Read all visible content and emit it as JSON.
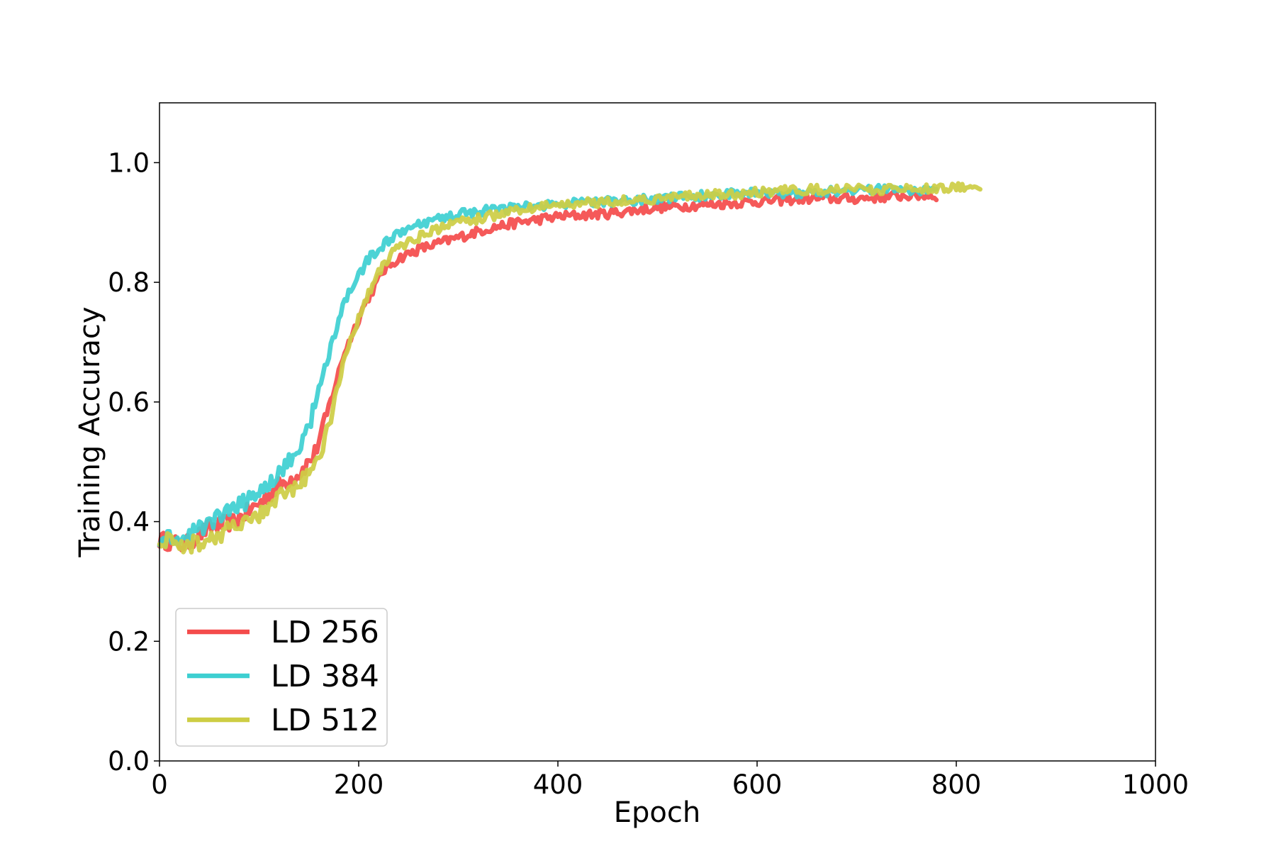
{
  "chart_data": {
    "type": "line",
    "title": "",
    "xlabel": "Epoch",
    "ylabel": "Training Accuracy",
    "xlim": [
      0,
      1000
    ],
    "ylim": [
      0,
      1.1
    ],
    "x_ticks": [
      0,
      200,
      400,
      600,
      800,
      1000
    ],
    "y_ticks": [
      0.0,
      0.2,
      0.4,
      0.6,
      0.8,
      1.0
    ],
    "x_tick_labels": [
      "0",
      "200",
      "400",
      "600",
      "800",
      "1000"
    ],
    "y_tick_labels": [
      "0.0",
      "0.2",
      "0.4",
      "0.6",
      "0.8",
      "1.0"
    ],
    "grid": false,
    "legend_position": "lower-left",
    "series": [
      {
        "name": "LD 256",
        "color": "#f44b4b",
        "x": [
          0,
          25,
          50,
          75,
          100,
          120,
          140,
          155,
          165,
          175,
          185,
          195,
          205,
          215,
          225,
          240,
          260,
          280,
          300,
          330,
          360,
          400,
          450,
          500,
          550,
          600,
          650,
          700,
          750,
          780
        ],
        "y": [
          0.37,
          0.36,
          0.39,
          0.4,
          0.43,
          0.46,
          0.48,
          0.51,
          0.56,
          0.62,
          0.68,
          0.72,
          0.76,
          0.79,
          0.82,
          0.84,
          0.855,
          0.865,
          0.875,
          0.89,
          0.9,
          0.91,
          0.915,
          0.925,
          0.93,
          0.935,
          0.94,
          0.94,
          0.945,
          0.945
        ]
      },
      {
        "name": "LD 384",
        "color": "#3dcfd1",
        "x": [
          0,
          25,
          50,
          75,
          100,
          120,
          140,
          150,
          160,
          170,
          180,
          190,
          200,
          210,
          220,
          230,
          245,
          260,
          280,
          300,
          330,
          360,
          400,
          450,
          500,
          550,
          600,
          650,
          700,
          750,
          780
        ],
        "y": [
          0.37,
          0.37,
          0.4,
          0.42,
          0.45,
          0.48,
          0.52,
          0.56,
          0.62,
          0.68,
          0.74,
          0.78,
          0.81,
          0.84,
          0.855,
          0.87,
          0.885,
          0.895,
          0.905,
          0.915,
          0.92,
          0.925,
          0.93,
          0.935,
          0.94,
          0.945,
          0.95,
          0.95,
          0.955,
          0.955,
          0.955
        ]
      },
      {
        "name": "LD 512",
        "color": "#cdcd44",
        "x": [
          0,
          25,
          50,
          75,
          100,
          120,
          140,
          155,
          165,
          175,
          185,
          195,
          205,
          215,
          225,
          240,
          260,
          280,
          300,
          330,
          360,
          400,
          450,
          500,
          550,
          600,
          650,
          700,
          750,
          800,
          825
        ],
        "y": [
          0.37,
          0.36,
          0.37,
          0.39,
          0.41,
          0.44,
          0.46,
          0.49,
          0.53,
          0.6,
          0.67,
          0.72,
          0.76,
          0.8,
          0.83,
          0.86,
          0.875,
          0.89,
          0.9,
          0.91,
          0.92,
          0.93,
          0.935,
          0.94,
          0.945,
          0.95,
          0.955,
          0.955,
          0.955,
          0.96,
          0.96
        ]
      }
    ]
  }
}
